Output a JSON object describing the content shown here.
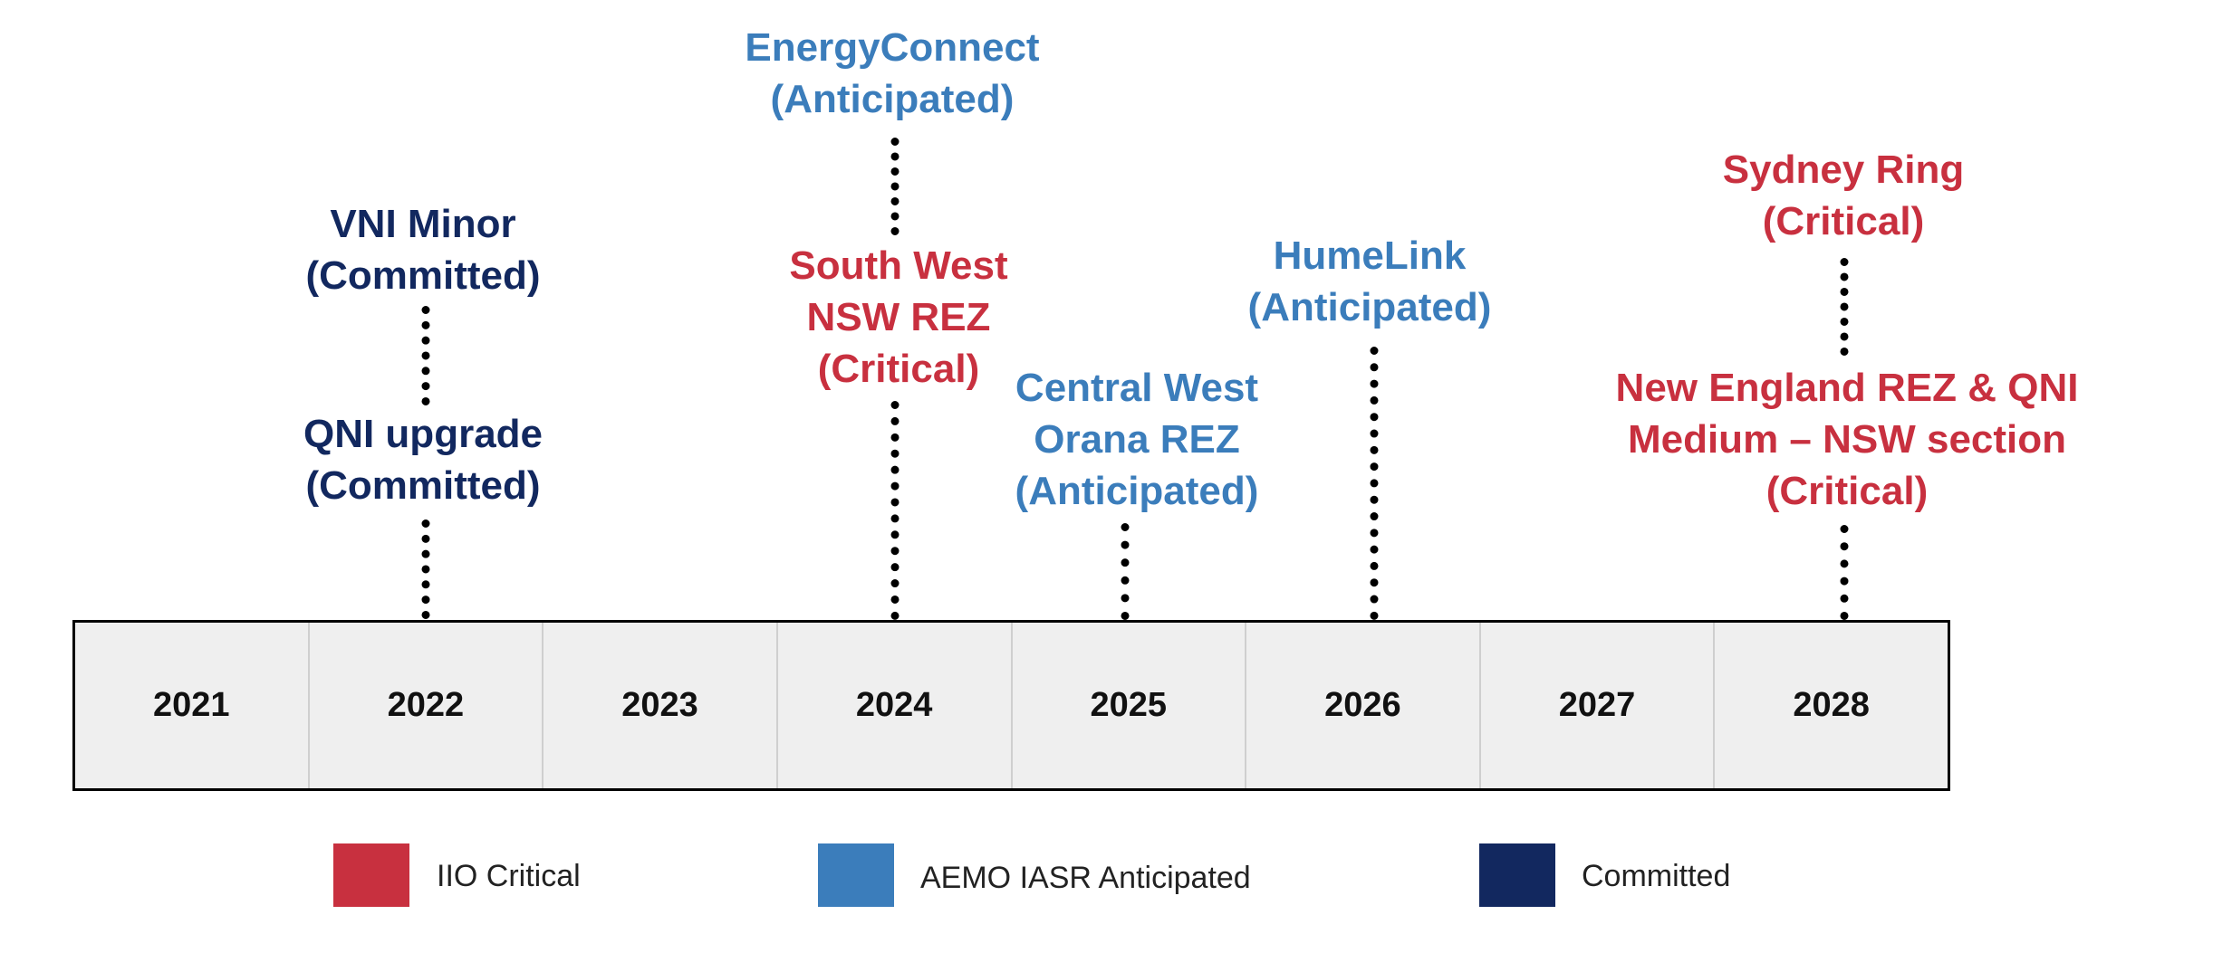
{
  "colors": {
    "critical": "#c8303f",
    "anticipated": "#3b7dbb",
    "committed": "#12285f"
  },
  "years": [
    "2021",
    "2022",
    "2023",
    "2024",
    "2025",
    "2026",
    "2027",
    "2028"
  ],
  "projects": {
    "energyconnect": "EnergyConnect\n(Anticipated)",
    "vni_minor": "VNI Minor\n(Committed)",
    "qni_upgrade": "QNI upgrade\n(Committed)",
    "south_west_nsw_rez": "South West\nNSW REZ\n(Critical)",
    "central_west_orana_rez": "Central West\nOrana REZ\n(Anticipated)",
    "humelink": "HumeLink\n(Anticipated)",
    "sydney_ring": "Sydney Ring\n(Critical)",
    "new_england_rez_qni": "New England REZ & QNI\nMedium – NSW section\n(Critical)"
  },
  "legend": {
    "critical": "IIO Critical",
    "anticipated": "AEMO IASR Anticipated",
    "committed": "Committed"
  }
}
